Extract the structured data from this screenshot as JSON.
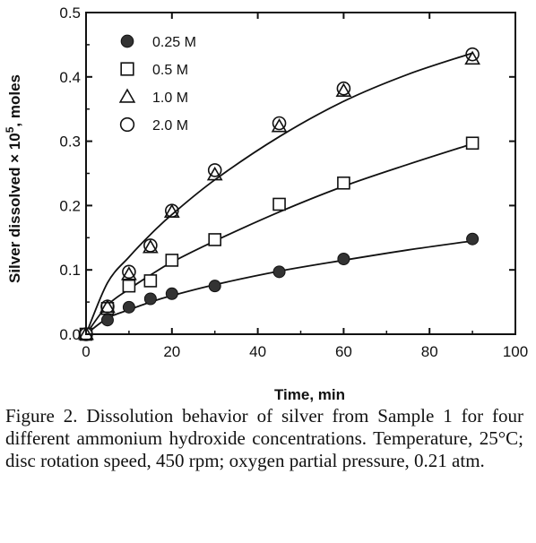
{
  "chart_data": {
    "type": "scatter",
    "xlabel": "Time,  min",
    "ylabel": "Silver  dissolved  × 10",
    "ylabel_exponent": "5",
    "ylabel_unit": ",  moles",
    "xlim": [
      0,
      100
    ],
    "ylim": [
      0,
      0.5
    ],
    "x_ticks": [
      "0",
      "20",
      "40",
      "60",
      "80",
      "100"
    ],
    "y_ticks": [
      "0.0",
      "0.1",
      "0.2",
      "0.3",
      "0.4",
      "0.5"
    ],
    "x_tick_values": [
      0,
      20,
      40,
      60,
      80,
      100
    ],
    "y_tick_values": [
      0,
      0.1,
      0.2,
      0.3,
      0.4,
      0.5
    ],
    "legend_position": "top-left",
    "series": [
      {
        "name": "0.25 M",
        "marker": "filled-circle",
        "x": [
          0,
          5,
          10,
          15,
          20,
          30,
          45,
          60,
          90
        ],
        "y": [
          0.0,
          0.022,
          0.042,
          0.055,
          0.063,
          0.075,
          0.097,
          0.117,
          0.148
        ]
      },
      {
        "name": "0.5 M",
        "marker": "open-square",
        "x": [
          0,
          5,
          10,
          15,
          20,
          30,
          45,
          60,
          90
        ],
        "y": [
          0.0,
          0.04,
          0.075,
          0.083,
          0.115,
          0.147,
          0.202,
          0.235,
          0.297
        ]
      },
      {
        "name": "1.0 M",
        "marker": "open-triangle",
        "x": [
          0,
          5,
          10,
          15,
          20,
          30,
          45,
          60,
          90
        ],
        "y": [
          0.0,
          0.042,
          0.093,
          0.135,
          0.19,
          0.248,
          0.323,
          0.378,
          0.428
        ]
      },
      {
        "name": "2.0 M",
        "marker": "open-circle",
        "x": [
          0,
          5,
          10,
          15,
          20,
          30,
          45,
          60,
          90
        ],
        "y": [
          0.0,
          0.043,
          0.097,
          0.138,
          0.192,
          0.255,
          0.328,
          0.382,
          0.435
        ]
      }
    ],
    "fit_curves": [
      {
        "x": [
          0,
          5,
          10,
          15,
          20,
          30,
          45,
          60,
          75,
          90
        ],
        "y": [
          0.0,
          0.025,
          0.038,
          0.05,
          0.06,
          0.077,
          0.098,
          0.115,
          0.131,
          0.145
        ]
      },
      {
        "x": [
          0,
          5,
          10,
          15,
          20,
          30,
          45,
          60,
          75,
          90
        ],
        "y": [
          0.0,
          0.045,
          0.07,
          0.092,
          0.112,
          0.145,
          0.19,
          0.23,
          0.264,
          0.296
        ]
      },
      {
        "x": [
          0,
          5,
          10,
          15,
          20,
          30,
          45,
          60,
          75,
          90
        ],
        "y": [
          0.0,
          0.08,
          0.12,
          0.155,
          0.186,
          0.24,
          0.307,
          0.362,
          0.404,
          0.437
        ]
      }
    ]
  },
  "caption": "Figure 2. Dissolution behavior of silver from Sample 1 for four different ammonium hydroxide concentrations. Temperature, 25°C; disc rotation speed, 450 rpm; oxygen partial pressure, 0.21 atm."
}
